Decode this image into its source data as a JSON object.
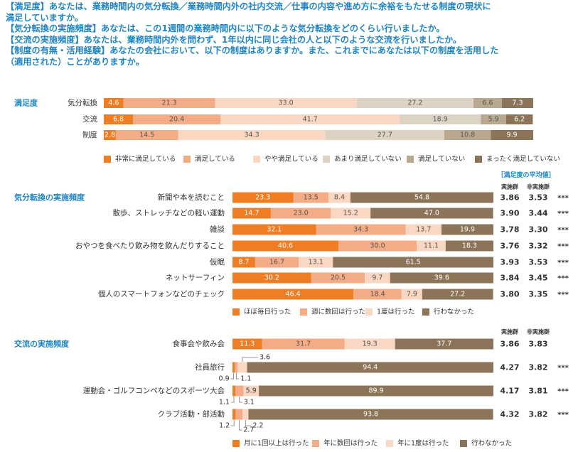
{
  "header": {
    "lines": [
      "【満足度】あなたは、業務時間内の気分転換／業務時間内外の社内交流／仕事の内容や進め方に余裕をもたせる制度の現状に",
      "満足していますか。",
      "【気分転換の実施頻度】あなたは、この1週間の業務時間内に以下のような気分転換をどのくらい行いましたか。",
      "【交流の実施頻度】あなたは、業務時間内外を問わず、1年以内に同じ会社の人と以下のような交流を行いましたか。",
      "【制度の有無・活用経験】あなたの会社において、以下の制度はありますか。また、これまでにあなたは以下の制度を活用した",
      "（適用された）ことがありますか。"
    ]
  },
  "chart_data": [
    {
      "type": "bar",
      "stacked": "horizontal-100%",
      "title": "満足度",
      "categories": [
        "気分転換",
        "交流",
        "制度"
      ],
      "series": [
        {
          "name": "非常に満足している",
          "color": "#ee7d24",
          "values": [
            4.6,
            6.8,
            2.8
          ]
        },
        {
          "name": "満足している",
          "color": "#f3ac85",
          "values": [
            21.3,
            20.4,
            14.5
          ]
        },
        {
          "name": "やや満足している",
          "color": "#fad7c2",
          "values": [
            33.0,
            41.7,
            34.3
          ]
        },
        {
          "name": "あまり満足していない",
          "color": "#dcd3c4",
          "values": [
            27.2,
            18.9,
            27.7
          ]
        },
        {
          "name": "満足していない",
          "color": "#b8a88f",
          "values": [
            6.6,
            5.9,
            10.8
          ]
        },
        {
          "name": "まったく満足していない",
          "color": "#8c7459",
          "values": [
            7.3,
            6.2,
            9.9
          ]
        }
      ]
    },
    {
      "type": "bar",
      "stacked": "horizontal-100%",
      "title": "気分転換の実施頻度",
      "mean_header": "［満足度の平均値］",
      "mean_columns": [
        "実施群",
        "非実施群"
      ],
      "categories": [
        "新聞や本を読むこと",
        "散歩、ストレッチなどの軽い運動",
        "雑談",
        "おやつを食べたり飲み物を飲んだりすること",
        "仮眠",
        "ネットサーフィン",
        "個人のスマートフォンなどのチェック"
      ],
      "series": [
        {
          "name": "ほぼ毎日行った",
          "color": "#ee7d24",
          "values": [
            23.3,
            14.7,
            32.1,
            40.6,
            8.7,
            30.2,
            46.4
          ]
        },
        {
          "name": "週に数回は行った",
          "color": "#f3ac85",
          "values": [
            13.5,
            23.0,
            34.3,
            30.0,
            16.7,
            20.5,
            18.4
          ]
        },
        {
          "name": "1度は行った",
          "color": "#fad7c2",
          "values": [
            8.4,
            15.2,
            13.7,
            11.1,
            13.1,
            9.7,
            7.9
          ]
        },
        {
          "name": "行わなかった",
          "color": "#8c7459",
          "values": [
            54.8,
            47.0,
            19.9,
            18.3,
            61.5,
            39.6,
            27.2
          ]
        }
      ],
      "means": [
        [
          "3.86",
          "3.53",
          "***"
        ],
        [
          "3.90",
          "3.44",
          "***"
        ],
        [
          "3.78",
          "3.30",
          "***"
        ],
        [
          "3.76",
          "3.32",
          "***"
        ],
        [
          "3.93",
          "3.53",
          "***"
        ],
        [
          "3.84",
          "3.45",
          "***"
        ],
        [
          "3.80",
          "3.35",
          "***"
        ]
      ]
    },
    {
      "type": "bar",
      "stacked": "horizontal-100%",
      "title": "交流の実施頻度",
      "mean_columns": [
        "実施群",
        "非実施群"
      ],
      "categories": [
        "食事会や飲み会",
        "社員旅行",
        "運動会・ゴルフコンペなどのスポーツ大会",
        "クラブ活動・部活動"
      ],
      "series": [
        {
          "name": "月に1回以上は行った",
          "color": "#ee7d24",
          "values": [
            11.3,
            0.9,
            1.1,
            1.2
          ]
        },
        {
          "name": "年に数回は行った",
          "color": "#f3ac85",
          "values": [
            31.7,
            1.1,
            3.1,
            2.7
          ]
        },
        {
          "name": "年に1度は行った",
          "color": "#fad7c2",
          "values": [
            19.3,
            3.6,
            5.9,
            2.2
          ]
        },
        {
          "name": "行わなかった",
          "color": "#8c7459",
          "values": [
            37.7,
            94.4,
            89.9,
            93.8
          ]
        }
      ],
      "means": [
        [
          "3.86",
          "3.83",
          ""
        ],
        [
          "4.27",
          "3.82",
          "***"
        ],
        [
          "4.17",
          "3.81",
          "***"
        ],
        [
          "4.32",
          "3.82",
          "***"
        ]
      ]
    }
  ]
}
